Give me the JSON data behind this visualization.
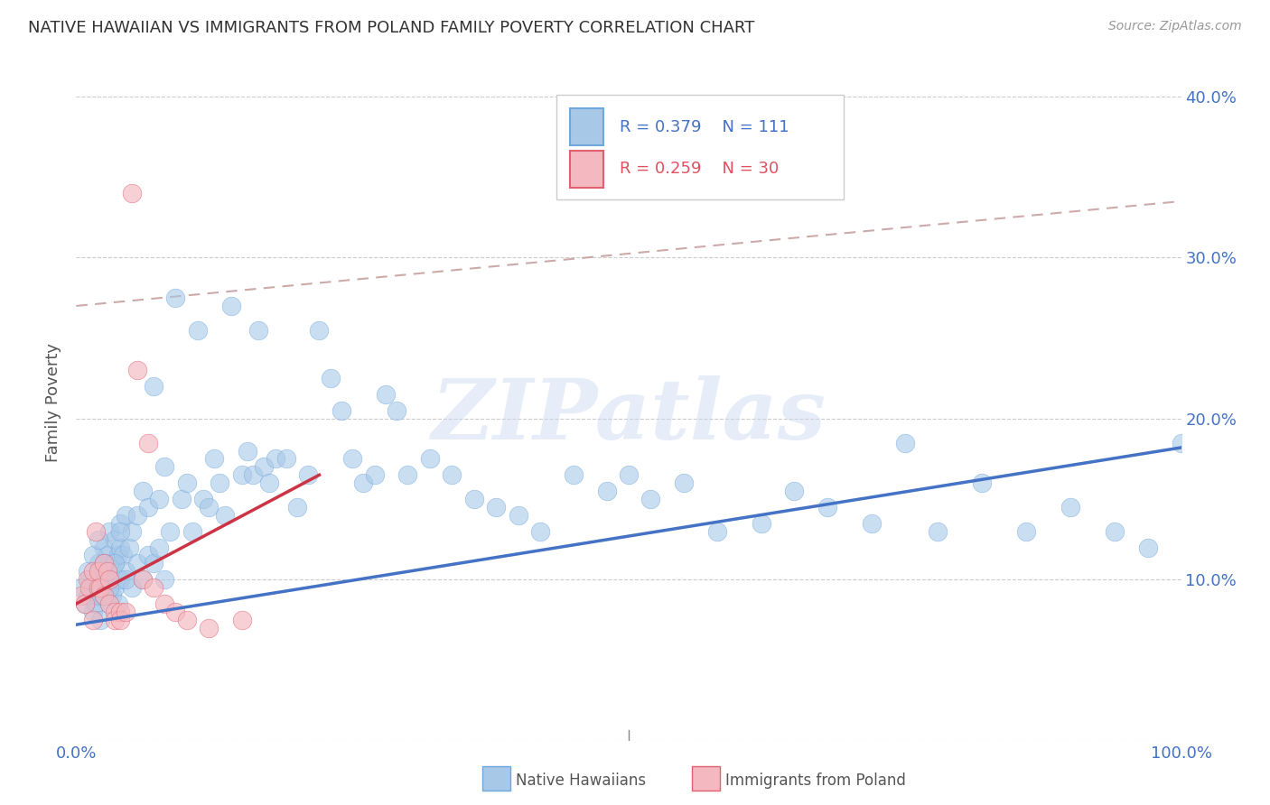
{
  "title": "NATIVE HAWAIIAN VS IMMIGRANTS FROM POLAND FAMILY POVERTY CORRELATION CHART",
  "source": "Source: ZipAtlas.com",
  "ylabel": "Family Poverty",
  "xlim": [
    0,
    1.0
  ],
  "ylim": [
    0.0,
    0.42
  ],
  "native_hawaiian_R": 0.379,
  "native_hawaiian_N": 111,
  "poland_R": 0.259,
  "poland_N": 30,
  "native_color": "#a8c8e8",
  "native_color_edge": "#6fa8dc",
  "poland_color": "#f4b8c0",
  "poland_color_edge": "#e06070",
  "native_color_line": "#4472c4",
  "poland_color_line": "#cc3344",
  "dashed_line_color": "#ccaaaa",
  "watermark": "ZIPatlas",
  "blue_line_x0": 0.0,
  "blue_line_y0": 0.072,
  "blue_line_x1": 1.0,
  "blue_line_y1": 0.182,
  "pink_line_x0": 0.0,
  "pink_line_y0": 0.085,
  "pink_line_x1": 0.22,
  "pink_line_y1": 0.165,
  "dash_line_x0": 0.0,
  "dash_line_y0": 0.27,
  "dash_line_x1": 1.0,
  "dash_line_y1": 0.335,
  "native_x": [
    0.005,
    0.008,
    0.01,
    0.012,
    0.015,
    0.015,
    0.018,
    0.018,
    0.02,
    0.02,
    0.022,
    0.022,
    0.025,
    0.025,
    0.025,
    0.028,
    0.028,
    0.03,
    0.03,
    0.03,
    0.032,
    0.032,
    0.035,
    0.035,
    0.035,
    0.038,
    0.038,
    0.04,
    0.04,
    0.04,
    0.042,
    0.045,
    0.045,
    0.048,
    0.05,
    0.05,
    0.055,
    0.055,
    0.06,
    0.06,
    0.065,
    0.065,
    0.07,
    0.07,
    0.075,
    0.075,
    0.08,
    0.08,
    0.085,
    0.09,
    0.095,
    0.1,
    0.105,
    0.11,
    0.115,
    0.12,
    0.125,
    0.13,
    0.135,
    0.14,
    0.15,
    0.155,
    0.16,
    0.165,
    0.17,
    0.175,
    0.18,
    0.19,
    0.2,
    0.21,
    0.22,
    0.23,
    0.24,
    0.25,
    0.26,
    0.27,
    0.28,
    0.29,
    0.3,
    0.32,
    0.34,
    0.36,
    0.38,
    0.4,
    0.42,
    0.45,
    0.48,
    0.5,
    0.52,
    0.55,
    0.58,
    0.62,
    0.65,
    0.68,
    0.72,
    0.75,
    0.78,
    0.82,
    0.86,
    0.9,
    0.94,
    0.97,
    1.0,
    0.01,
    0.015,
    0.02,
    0.025,
    0.03,
    0.035,
    0.04,
    0.045
  ],
  "native_y": [
    0.095,
    0.085,
    0.09,
    0.1,
    0.095,
    0.08,
    0.1,
    0.085,
    0.11,
    0.09,
    0.105,
    0.075,
    0.105,
    0.09,
    0.12,
    0.095,
    0.115,
    0.1,
    0.085,
    0.13,
    0.11,
    0.09,
    0.11,
    0.095,
    0.125,
    0.115,
    0.085,
    0.1,
    0.12,
    0.135,
    0.115,
    0.14,
    0.105,
    0.12,
    0.095,
    0.13,
    0.14,
    0.11,
    0.155,
    0.1,
    0.145,
    0.115,
    0.22,
    0.11,
    0.15,
    0.12,
    0.17,
    0.1,
    0.13,
    0.275,
    0.15,
    0.16,
    0.13,
    0.255,
    0.15,
    0.145,
    0.175,
    0.16,
    0.14,
    0.27,
    0.165,
    0.18,
    0.165,
    0.255,
    0.17,
    0.16,
    0.175,
    0.175,
    0.145,
    0.165,
    0.255,
    0.225,
    0.205,
    0.175,
    0.16,
    0.165,
    0.215,
    0.205,
    0.165,
    0.175,
    0.165,
    0.15,
    0.145,
    0.14,
    0.13,
    0.165,
    0.155,
    0.165,
    0.15,
    0.16,
    0.13,
    0.135,
    0.155,
    0.145,
    0.135,
    0.185,
    0.13,
    0.16,
    0.13,
    0.145,
    0.13,
    0.12,
    0.185,
    0.105,
    0.115,
    0.125,
    0.11,
    0.095,
    0.11,
    0.13,
    0.1
  ],
  "poland_x": [
    0.005,
    0.008,
    0.01,
    0.012,
    0.015,
    0.015,
    0.018,
    0.02,
    0.02,
    0.022,
    0.025,
    0.025,
    0.028,
    0.03,
    0.03,
    0.035,
    0.035,
    0.04,
    0.04,
    0.045,
    0.05,
    0.055,
    0.06,
    0.065,
    0.07,
    0.08,
    0.09,
    0.1,
    0.12,
    0.15
  ],
  "poland_y": [
    0.09,
    0.085,
    0.1,
    0.095,
    0.105,
    0.075,
    0.13,
    0.095,
    0.105,
    0.095,
    0.11,
    0.09,
    0.105,
    0.085,
    0.1,
    0.08,
    0.075,
    0.08,
    0.075,
    0.08,
    0.34,
    0.23,
    0.1,
    0.185,
    0.095,
    0.085,
    0.08,
    0.075,
    0.07,
    0.075
  ]
}
